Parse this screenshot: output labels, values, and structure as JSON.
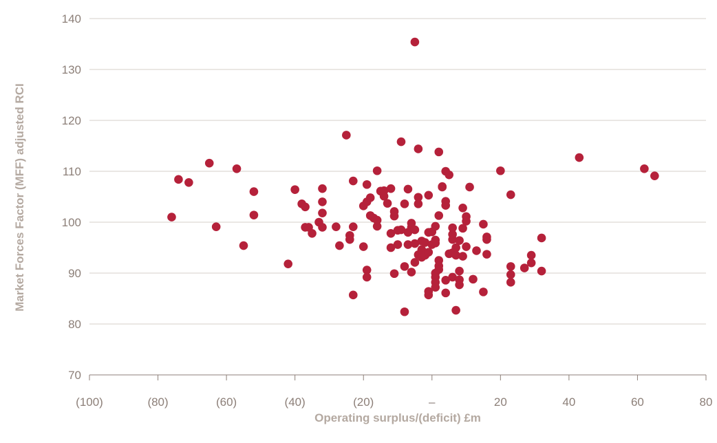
{
  "chart_data": {
    "type": "scatter",
    "title": "",
    "xlabel": "Operating surplus/(deficit) £m",
    "ylabel": "Market Forces Factor (MFF) adjusted RCI",
    "xlim": [
      -100,
      80
    ],
    "ylim": [
      70,
      140
    ],
    "x_ticks": [
      {
        "value": -100,
        "label": "(100)"
      },
      {
        "value": -80,
        "label": "(80)"
      },
      {
        "value": -60,
        "label": "(60)"
      },
      {
        "value": -40,
        "label": "(40)"
      },
      {
        "value": -20,
        "label": "(20)"
      },
      {
        "value": 0,
        "label": "–"
      },
      {
        "value": 20,
        "label": "20"
      },
      {
        "value": 40,
        "label": "40"
      },
      {
        "value": 60,
        "label": "60"
      },
      {
        "value": 80,
        "label": "80"
      }
    ],
    "y_ticks": [
      {
        "value": 70,
        "label": "70"
      },
      {
        "value": 80,
        "label": "80"
      },
      {
        "value": 90,
        "label": "90"
      },
      {
        "value": 100,
        "label": "100"
      },
      {
        "value": 110,
        "label": "110"
      },
      {
        "value": 120,
        "label": "120"
      },
      {
        "value": 130,
        "label": "130"
      },
      {
        "value": 140,
        "label": "140"
      }
    ],
    "grid": "horizontal",
    "marker_color": "#b5213a",
    "gridline_color": "#d6cfca",
    "points": [
      [
        -76,
        101
      ],
      [
        -74,
        108.4
      ],
      [
        -71,
        107.8
      ],
      [
        -65,
        111.6
      ],
      [
        -63,
        99.1
      ],
      [
        -57,
        110.5
      ],
      [
        -55,
        95.4
      ],
      [
        -52,
        106
      ],
      [
        -52,
        101.4
      ],
      [
        -42,
        91.8
      ],
      [
        -40,
        106.4
      ],
      [
        -38,
        103.6
      ],
      [
        -37,
        103
      ],
      [
        -37,
        99
      ],
      [
        -36,
        99
      ],
      [
        -35,
        97.8
      ],
      [
        -33,
        100
      ],
      [
        -32,
        104
      ],
      [
        -32,
        106.6
      ],
      [
        -32,
        101.8
      ],
      [
        -32,
        99
      ],
      [
        -28,
        99.1
      ],
      [
        -27,
        95.4
      ],
      [
        -25,
        117.1
      ],
      [
        -24,
        97.4
      ],
      [
        -24,
        96.6
      ],
      [
        -23,
        85.7
      ],
      [
        -23,
        108.1
      ],
      [
        -23,
        99.1
      ],
      [
        -20,
        95.2
      ],
      [
        -20,
        103.2
      ],
      [
        -19,
        104
      ],
      [
        -19,
        90.6
      ],
      [
        -19,
        89.2
      ],
      [
        -19,
        107.4
      ],
      [
        -18,
        104.8
      ],
      [
        -18,
        101.3
      ],
      [
        -17,
        100.8
      ],
      [
        -16,
        110.1
      ],
      [
        -16,
        99.2
      ],
      [
        -16,
        100.4
      ],
      [
        -15,
        106.1
      ],
      [
        -14,
        105.1
      ],
      [
        -14,
        106.2
      ],
      [
        -13,
        103.7
      ],
      [
        -12,
        106.6
      ],
      [
        -12,
        95
      ],
      [
        -12,
        97.8
      ],
      [
        -11,
        89.9
      ],
      [
        -11,
        101.2
      ],
      [
        -11,
        102.1
      ],
      [
        -10,
        95.6
      ],
      [
        -10,
        98.4
      ],
      [
        -9,
        98.5
      ],
      [
        -9,
        115.8
      ],
      [
        -8,
        91.3
      ],
      [
        -8,
        82.4
      ],
      [
        -8,
        103.6
      ],
      [
        -7,
        98
      ],
      [
        -7,
        95.6
      ],
      [
        -7,
        106.5
      ],
      [
        -6,
        99
      ],
      [
        -6,
        90.2
      ],
      [
        -6,
        99.8
      ],
      [
        -5,
        135.4
      ],
      [
        -5,
        92.1
      ],
      [
        -5,
        95.8
      ],
      [
        -5,
        98.5
      ],
      [
        -4,
        93.6
      ],
      [
        -4,
        103.6
      ],
      [
        -4,
        104.9
      ],
      [
        -4,
        114.4
      ],
      [
        -3,
        93.1
      ],
      [
        -3,
        93.8
      ],
      [
        -3,
        94.6
      ],
      [
        -3,
        96.3
      ],
      [
        -2,
        96
      ],
      [
        -2,
        93.5
      ],
      [
        -1,
        94.1
      ],
      [
        -1,
        86.4
      ],
      [
        -1,
        85.7
      ],
      [
        -1,
        105.3
      ],
      [
        -1,
        98
      ],
      [
        0,
        95.6
      ],
      [
        0,
        98.1
      ],
      [
        1,
        96.5
      ],
      [
        1,
        95.9
      ],
      [
        1,
        99.2
      ],
      [
        1,
        90
      ],
      [
        1,
        89.2
      ],
      [
        1,
        88.2
      ],
      [
        1,
        87.2
      ],
      [
        2,
        113.8
      ],
      [
        2,
        92.5
      ],
      [
        2,
        91.4
      ],
      [
        2,
        90.7
      ],
      [
        2,
        101.3
      ],
      [
        3,
        106.9
      ],
      [
        3,
        107
      ],
      [
        4,
        88.6
      ],
      [
        4,
        86.1
      ],
      [
        4,
        103.3
      ],
      [
        4,
        104.1
      ],
      [
        4,
        110
      ],
      [
        5,
        93.8
      ],
      [
        5,
        109.3
      ],
      [
        6,
        96.6
      ],
      [
        6,
        94
      ],
      [
        6,
        97.6
      ],
      [
        6,
        98.9
      ],
      [
        6,
        89.2
      ],
      [
        7,
        82.7
      ],
      [
        7,
        95
      ],
      [
        7,
        93.5
      ],
      [
        8,
        88.7
      ],
      [
        8,
        87.7
      ],
      [
        8,
        90.4
      ],
      [
        8,
        96.4
      ],
      [
        9,
        102.8
      ],
      [
        9,
        93.3
      ],
      [
        9,
        98.8
      ],
      [
        10,
        95.2
      ],
      [
        10,
        100.2
      ],
      [
        10,
        101.1
      ],
      [
        11,
        106.9
      ],
      [
        12,
        88.8
      ],
      [
        13,
        94.4
      ],
      [
        15,
        86.3
      ],
      [
        15,
        99.6
      ],
      [
        16,
        93.7
      ],
      [
        16,
        97.1
      ],
      [
        16,
        96.6
      ],
      [
        20,
        110.1
      ],
      [
        23,
        89.7
      ],
      [
        23,
        88.2
      ],
      [
        23,
        91.3
      ],
      [
        23,
        105.4
      ],
      [
        27,
        91
      ],
      [
        29,
        93.5
      ],
      [
        29,
        92
      ],
      [
        32,
        90.4
      ],
      [
        32,
        96.9
      ],
      [
        43,
        112.7
      ],
      [
        62,
        110.5
      ],
      [
        65,
        109.1
      ]
    ]
  }
}
